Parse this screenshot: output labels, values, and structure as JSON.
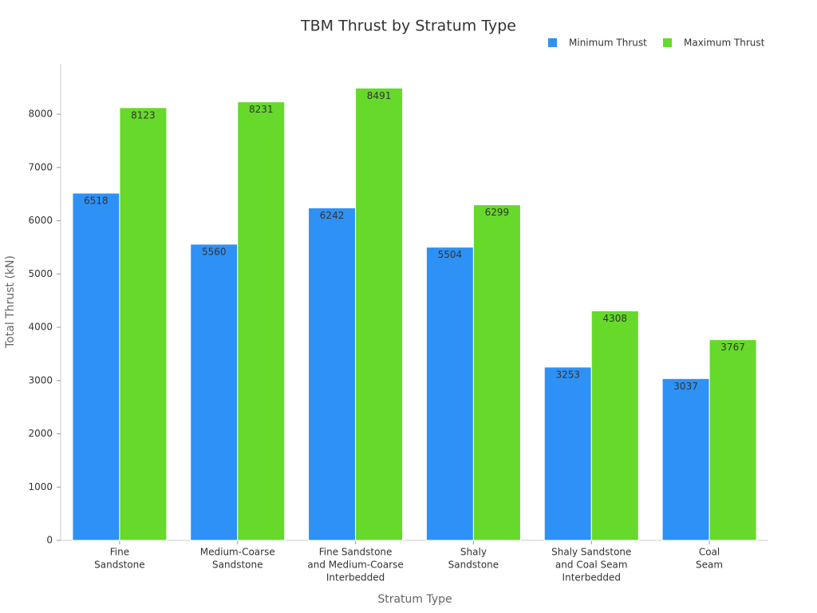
{
  "chart_data": {
    "type": "bar",
    "title": "TBM Thrust by Stratum Type",
    "x_label": "Stratum Type",
    "y_label": "Total Thrust (kN)",
    "categories": [
      [
        "Fine",
        "Sandstone"
      ],
      [
        "Medium-Coarse",
        "Sandstone"
      ],
      [
        "Fine Sandstone",
        "and Medium-Coarse",
        "Interbedded"
      ],
      [
        "Shaly",
        "Sandstone"
      ],
      [
        "Shaly Sandstone",
        "and Coal Seam",
        "Interbedded"
      ],
      [
        "Coal",
        "Seam"
      ]
    ],
    "series": [
      {
        "name": "Minimum Thrust",
        "color": "#2e91f5",
        "values": [
          6518,
          5560,
          6242,
          5504,
          3253,
          3037
        ]
      },
      {
        "name": "Maximum Thrust",
        "color": "#66d92a",
        "values": [
          8123,
          8231,
          8491,
          6299,
          4308,
          3767
        ]
      }
    ],
    "ylim": [
      0,
      8915
    ],
    "yticks": [
      0,
      1000,
      2000,
      3000,
      4000,
      5000,
      6000,
      7000,
      8000
    ],
    "grid": false,
    "legend": "top-right"
  }
}
